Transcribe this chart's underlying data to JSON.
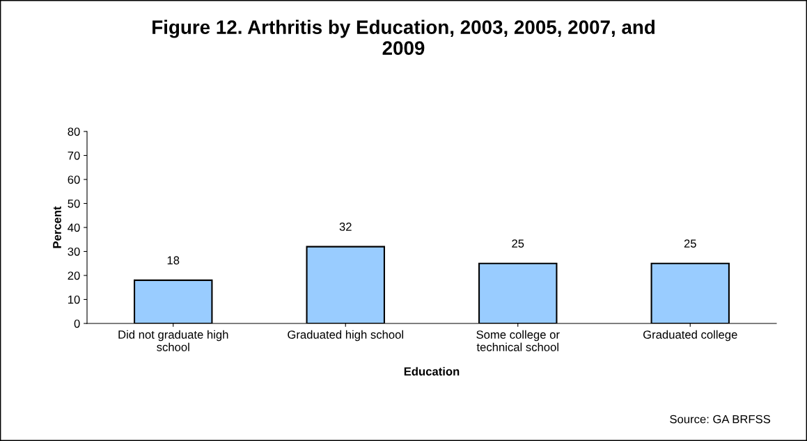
{
  "chart_data": {
    "type": "bar",
    "title": "Figure 12. Arthritis by Education, 2003, 2005, 2007, and\n2009",
    "categories": [
      "Did not graduate high\nschool",
      "Graduated high school",
      "Some college or\ntechnical school",
      "Graduated college"
    ],
    "values": [
      18,
      32,
      25,
      25
    ],
    "color": "#99ccff",
    "data_labels": true,
    "xlabel": "Education",
    "ylabel": "Percent",
    "ylim": [
      0,
      80
    ],
    "yticks": [
      0,
      10,
      20,
      30,
      40,
      50,
      60,
      70,
      80
    ],
    "grid": false,
    "legend": false,
    "annotations": [
      "Source: GA BRFSS"
    ]
  }
}
